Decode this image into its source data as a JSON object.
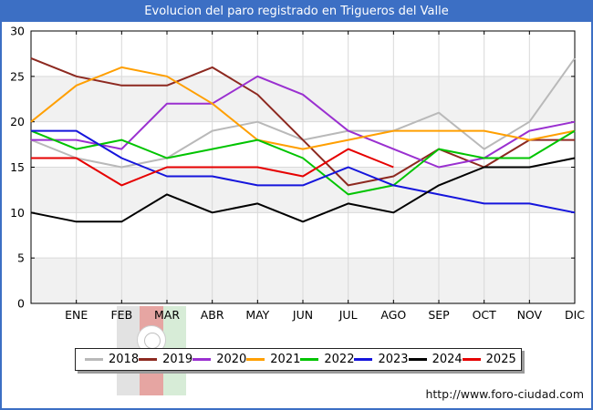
{
  "window": {
    "title": "Evolucion del paro registrado en Trigueros del Valle"
  },
  "footer": {
    "url": "http://www.foro-ciudad.com"
  },
  "chart_data": {
    "type": "line",
    "title": "Evolucion del paro registrado en Trigueros del Valle",
    "xlabel": "",
    "ylabel": "",
    "ylim": [
      0,
      30
    ],
    "y_ticks": [
      0,
      5,
      10,
      15,
      20,
      25,
      30
    ],
    "x_tick_labels": [
      "ENE",
      "FEB",
      "MAR",
      "ABR",
      "MAY",
      "JUN",
      "JUL",
      "AGO",
      "SEP",
      "OCT",
      "NOV",
      "DIC"
    ],
    "grid": true,
    "shaded_bands": [
      [
        0,
        5
      ],
      [
        10,
        15
      ],
      [
        20,
        25
      ]
    ],
    "legend_position": "bottom",
    "note": "First value of each series is drawn at the left axis edge; the remaining values fall on the ENE..DIC ticks.",
    "series": [
      {
        "name": "2018",
        "color": "#b9b9b9",
        "values": [
          18,
          16,
          15,
          16,
          19,
          20,
          18,
          19,
          19,
          21,
          17,
          20,
          27
        ]
      },
      {
        "name": "2019",
        "color": "#8d2920",
        "values": [
          27,
          25,
          24,
          24,
          26,
          23,
          18,
          13,
          14,
          17,
          15,
          18,
          18
        ]
      },
      {
        "name": "2020",
        "color": "#9a30d0",
        "values": [
          18,
          18,
          17,
          22,
          22,
          25,
          23,
          19,
          17,
          15,
          16,
          19,
          20
        ]
      },
      {
        "name": "2021",
        "color": "#ff9f00",
        "values": [
          20,
          24,
          26,
          25,
          22,
          18,
          17,
          18,
          19,
          19,
          19,
          18,
          19
        ]
      },
      {
        "name": "2022",
        "color": "#00c400",
        "values": [
          19,
          17,
          18,
          16,
          17,
          18,
          16,
          12,
          13,
          17,
          16,
          16,
          19
        ]
      },
      {
        "name": "2023",
        "color": "#1515dc",
        "values": [
          19,
          19,
          16,
          14,
          14,
          13,
          13,
          15,
          13,
          12,
          11,
          11,
          10
        ]
      },
      {
        "name": "2024",
        "color": "#000000",
        "values": [
          10,
          9,
          9,
          12,
          10,
          11,
          9,
          11,
          10,
          13,
          15,
          15,
          16
        ]
      },
      {
        "name": "2025",
        "color": "#e60000",
        "values": [
          16,
          16,
          13,
          15,
          15,
          15,
          14,
          17,
          15
        ]
      }
    ]
  }
}
